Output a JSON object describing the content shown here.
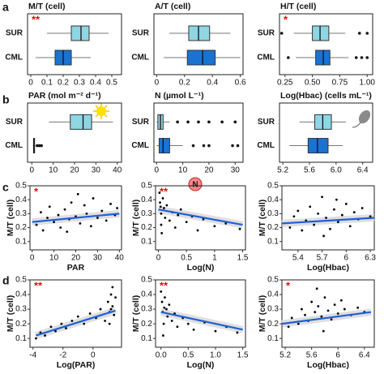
{
  "panel_labels": [
    "a",
    "b",
    "c",
    "d"
  ],
  "chart_data": [
    {
      "type": "boxplot",
      "title": "M/T (cell)",
      "annotation": "**",
      "xlim": [
        -0.02,
        0.56
      ],
      "xticks": [
        0,
        0.1,
        0.2,
        0.3,
        0.4,
        0.5
      ],
      "series": [
        {
          "name": "SUR",
          "color": "#8fd6e3",
          "min": 0.1,
          "q1": 0.25,
          "median": 0.31,
          "q3": 0.36,
          "max": 0.48,
          "outliers": []
        },
        {
          "name": "CML",
          "color": "#1a73d1",
          "min": 0.03,
          "q1": 0.15,
          "median": 0.2,
          "q3": 0.25,
          "max": 0.37,
          "outliers": []
        }
      ]
    },
    {
      "type": "boxplot",
      "title": "A/T (cell)",
      "xlim": [
        -0.02,
        0.62
      ],
      "xticks": [
        0,
        0.2,
        0.4,
        0.6
      ],
      "series": [
        {
          "name": "SUR",
          "color": "#8fd6e3",
          "min": 0.09,
          "q1": 0.23,
          "median": 0.3,
          "q3": 0.38,
          "max": 0.53,
          "outliers": []
        },
        {
          "name": "CML",
          "color": "#1a73d1",
          "min": 0.05,
          "q1": 0.22,
          "median": 0.33,
          "q3": 0.42,
          "max": 0.6,
          "outliers": []
        }
      ]
    },
    {
      "type": "boxplot",
      "title": "H/T (cell)",
      "annotation": "*",
      "xlim": [
        0.2,
        1.05
      ],
      "xticks": [
        0.25,
        {
          "value": 0.5,
          "label": "0.50"
        },
        0.75,
        {
          "value": 1,
          "label": "1.00"
        }
      ],
      "series": [
        {
          "name": "SUR",
          "color": "#8fd6e3",
          "min": 0.33,
          "q1": 0.5,
          "median": 0.57,
          "q3": 0.65,
          "max": 0.8,
          "outliers": [
            0.22,
            0.93,
            1.0
          ]
        },
        {
          "name": "CML",
          "color": "#1a73d1",
          "min": 0.35,
          "q1": 0.53,
          "median": 0.6,
          "q3": 0.66,
          "max": 0.83,
          "outliers": [
            0.28,
            0.9,
            0.95,
            1.0
          ]
        }
      ]
    },
    {
      "type": "boxplot",
      "title": "PAR (mol m⁻² d⁻¹)",
      "xlim": [
        -2,
        42
      ],
      "xticks": [
        0,
        10,
        20,
        30,
        40
      ],
      "series": [
        {
          "name": "SUR",
          "color": "#8fd6e3",
          "min": 8,
          "q1": 18,
          "median": 24,
          "q3": 28,
          "max": 38,
          "outliers": []
        },
        {
          "name": "CML",
          "color": "#1a73d1",
          "min": 0.5,
          "q1": 0.8,
          "median": 1,
          "q3": 1.3,
          "max": 1.6,
          "outliers": [
            2.5,
            3.5,
            4.5
          ]
        }
      ]
    },
    {
      "type": "boxplot",
      "title": "N (µmol L⁻¹)",
      "badge": "N",
      "xlim": [
        -1,
        33
      ],
      "xticks": [
        0,
        10,
        20,
        30
      ],
      "series": [
        {
          "name": "SUR",
          "color": "#8fd6e3",
          "min": 0,
          "q1": 0.5,
          "median": 1.5,
          "q3": 2.5,
          "max": 5,
          "outliers": [
            8,
            12,
            16,
            20,
            25,
            30
          ]
        },
        {
          "name": "CML",
          "color": "#1a73d1",
          "min": 0,
          "q1": 1,
          "median": 2.5,
          "q3": 5,
          "max": 10,
          "outliers": [
            14,
            18,
            20,
            29,
            31
          ]
        }
      ]
    },
    {
      "type": "boxplot",
      "title": "Log(Hbac) (cells mL⁻¹)",
      "xlim": [
        5.15,
        6.55
      ],
      "xticks": [
        5.2,
        5.6,
        {
          "value": 6,
          "label": "6.0"
        },
        6.4
      ],
      "series": [
        {
          "name": "SUR",
          "color": "#8fd6e3",
          "min": 5.45,
          "q1": 5.68,
          "median": 5.8,
          "q3": 5.93,
          "max": 6.15,
          "outliers": []
        },
        {
          "name": "CML",
          "color": "#1a73d1",
          "min": 5.3,
          "q1": 5.58,
          "median": 5.72,
          "q3": 5.88,
          "max": 6.1,
          "outliers": []
        }
      ]
    },
    {
      "type": "scatter",
      "xlabel": "PAR",
      "ylabel": "M/T (cell)",
      "annotation": "*",
      "xlim": [
        -1,
        41
      ],
      "xticks": [
        0,
        10,
        20,
        30,
        40
      ],
      "ylim": [
        0.04,
        0.5
      ],
      "yticks": [
        0.1,
        0.2,
        0.3,
        0.4,
        0.5
      ],
      "x": [
        2,
        4,
        5,
        7,
        8,
        10,
        12,
        13,
        15,
        17,
        18,
        20,
        22,
        24,
        25,
        27,
        28,
        30,
        32,
        34,
        36,
        38,
        39,
        16,
        21
      ],
      "y": [
        0.22,
        0.31,
        0.18,
        0.27,
        0.35,
        0.24,
        0.29,
        0.2,
        0.33,
        0.26,
        0.38,
        0.28,
        0.23,
        0.36,
        0.3,
        0.21,
        0.41,
        0.27,
        0.32,
        0.25,
        0.37,
        0.29,
        0.34,
        0.17,
        0.44
      ],
      "fit": {
        "x": [
          0,
          40
        ],
        "y": [
          0.24,
          0.3
        ],
        "color": "#1f5fd6"
      }
    },
    {
      "type": "scatter",
      "xlabel": "Log(N)",
      "ylabel": "M/T (cell)",
      "annotation": "**",
      "xlim": [
        -0.05,
        1.55
      ],
      "xticks": [
        0,
        0.5,
        1,
        1.5
      ],
      "ylim": [
        0.04,
        0.5
      ],
      "yticks": [
        0.1,
        0.2,
        0.3,
        0.4,
        0.5
      ],
      "x": [
        0.02,
        0.03,
        0.05,
        0.05,
        0.08,
        0.1,
        0.12,
        0.15,
        0.2,
        0.25,
        0.3,
        0.35,
        0.4,
        0.5,
        0.6,
        0.7,
        0.8,
        1.0,
        1.2,
        1.45,
        0.06,
        0.04
      ],
      "y": [
        0.45,
        0.38,
        0.3,
        0.22,
        0.41,
        0.34,
        0.27,
        0.36,
        0.25,
        0.31,
        0.2,
        0.29,
        0.33,
        0.24,
        0.28,
        0.18,
        0.26,
        0.21,
        0.23,
        0.19,
        0.16,
        0.35
      ],
      "fit": {
        "x": [
          0,
          1.5
        ],
        "y": [
          0.33,
          0.22
        ],
        "color": "#1f5fd6"
      }
    },
    {
      "type": "scatter",
      "xlabel": "Log(Hbac)",
      "ylabel": "M/T (cell)",
      "xlim": [
        5.2,
        6.35
      ],
      "xticks": [
        5.4,
        5.7,
        6,
        6.3
      ],
      "ylim": [
        0.04,
        0.5
      ],
      "yticks": [
        0.1,
        0.2,
        0.3,
        0.4,
        0.5
      ],
      "x": [
        5.3,
        5.35,
        5.4,
        5.45,
        5.5,
        5.55,
        5.6,
        5.65,
        5.7,
        5.75,
        5.8,
        5.85,
        5.9,
        5.95,
        6.0,
        6.05,
        6.1,
        6.15,
        6.2,
        6.3,
        5.72,
        5.88
      ],
      "y": [
        0.2,
        0.28,
        0.32,
        0.18,
        0.25,
        0.35,
        0.22,
        0.3,
        0.42,
        0.27,
        0.19,
        0.33,
        0.24,
        0.29,
        0.37,
        0.21,
        0.31,
        0.26,
        0.34,
        0.28,
        0.14,
        0.4
      ],
      "fit": {
        "x": [
          5.2,
          6.35
        ],
        "y": [
          0.23,
          0.27
        ],
        "color": "#1f5fd6"
      }
    },
    {
      "type": "scatter",
      "xlabel": "Log(PAR)",
      "ylabel": "M/T (cell)",
      "annotation": "**",
      "xlim": [
        -4.2,
        1.9
      ],
      "xticks": [
        -4,
        -2,
        0
      ],
      "ylim": [
        0.04,
        0.5
      ],
      "yticks": [
        0.1,
        0.2,
        0.3,
        0.4,
        0.5
      ],
      "x": [
        -3.8,
        -3.5,
        -3.2,
        -2.8,
        -2.5,
        -2.1,
        -1.8,
        -1.4,
        -1,
        -0.6,
        -0.2,
        0.2,
        0.5,
        0.8,
        1,
        1.1,
        1.2,
        1.3,
        1.4,
        1.5,
        1.1,
        1.3,
        1.2
      ],
      "y": [
        0.1,
        0.14,
        0.12,
        0.18,
        0.15,
        0.2,
        0.17,
        0.22,
        0.25,
        0.2,
        0.27,
        0.24,
        0.3,
        0.22,
        0.35,
        0.28,
        0.4,
        0.32,
        0.26,
        0.38,
        0.2,
        0.45,
        0.3
      ],
      "fit": {
        "x": [
          -3.8,
          1.5
        ],
        "y": [
          0.12,
          0.29
        ],
        "color": "#1f5fd6"
      }
    },
    {
      "type": "scatter",
      "xlabel": "Log(N)",
      "ylabel": "M/T (cell)",
      "annotation": "**",
      "xlim": [
        -0.1,
        1.55
      ],
      "xticks": [
        {
          "value": 0,
          "label": "0.0"
        },
        0.5,
        {
          "value": 1,
          "label": "1.0"
        },
        1.5
      ],
      "ylim": [
        0.04,
        0.5
      ],
      "yticks": [
        0.1,
        0.2,
        0.3,
        0.4,
        0.5
      ],
      "x": [
        0,
        0.02,
        0.03,
        0.05,
        0.07,
        0.1,
        0.12,
        0.15,
        0.2,
        0.25,
        0.3,
        0.4,
        0.5,
        0.6,
        0.8,
        1.0,
        1.2,
        1.4,
        0.04,
        0.06
      ],
      "y": [
        0.42,
        0.35,
        0.28,
        0.2,
        0.38,
        0.3,
        0.25,
        0.33,
        0.22,
        0.27,
        0.18,
        0.24,
        0.2,
        0.16,
        0.21,
        0.15,
        0.18,
        0.14,
        0.12,
        0.31
      ],
      "fit": {
        "x": [
          0,
          1.5
        ],
        "y": [
          0.28,
          0.16
        ],
        "color": "#1f5fd6"
      }
    },
    {
      "type": "scatter",
      "xlabel": "Log(Hbac)",
      "ylabel": "M/T (cell)",
      "annotation": "*",
      "xlim": [
        5.15,
        6.55
      ],
      "xticks": [
        5.2,
        5.6,
        6,
        6.4
      ],
      "ylim": [
        0.04,
        0.5
      ],
      "yticks": [
        0.1,
        0.2,
        0.3,
        0.4,
        0.5
      ],
      "x": [
        5.25,
        5.3,
        5.4,
        5.45,
        5.5,
        5.55,
        5.6,
        5.65,
        5.7,
        5.75,
        5.8,
        5.85,
        5.9,
        5.95,
        6,
        6.05,
        6.1,
        6.2,
        6.3,
        6.4,
        5.68,
        5.78
      ],
      "y": [
        0.18,
        0.24,
        0.2,
        0.3,
        0.26,
        0.22,
        0.35,
        0.28,
        0.32,
        0.25,
        0.38,
        0.29,
        0.23,
        0.33,
        0.27,
        0.36,
        0.3,
        0.26,
        0.31,
        0.28,
        0.44,
        0.15
      ],
      "fit": {
        "x": [
          5.15,
          6.5
        ],
        "y": [
          0.2,
          0.28
        ],
        "color": "#1f5fd6"
      }
    }
  ]
}
